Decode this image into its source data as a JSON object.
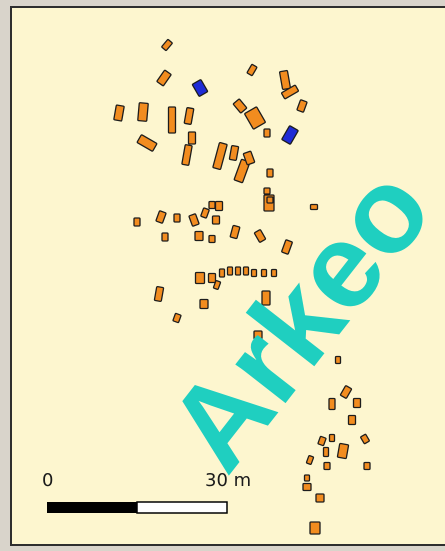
{
  "map": {
    "background_color": "#fdf6cf",
    "building_color_default": "#f28c1f",
    "building_color_highlight": "#1f2bd6",
    "watermark": {
      "text": "Arkeo",
      "color": "#1fcfc0"
    },
    "scale_bar": {
      "label_start": "0",
      "label_end": "30 m"
    }
  }
}
